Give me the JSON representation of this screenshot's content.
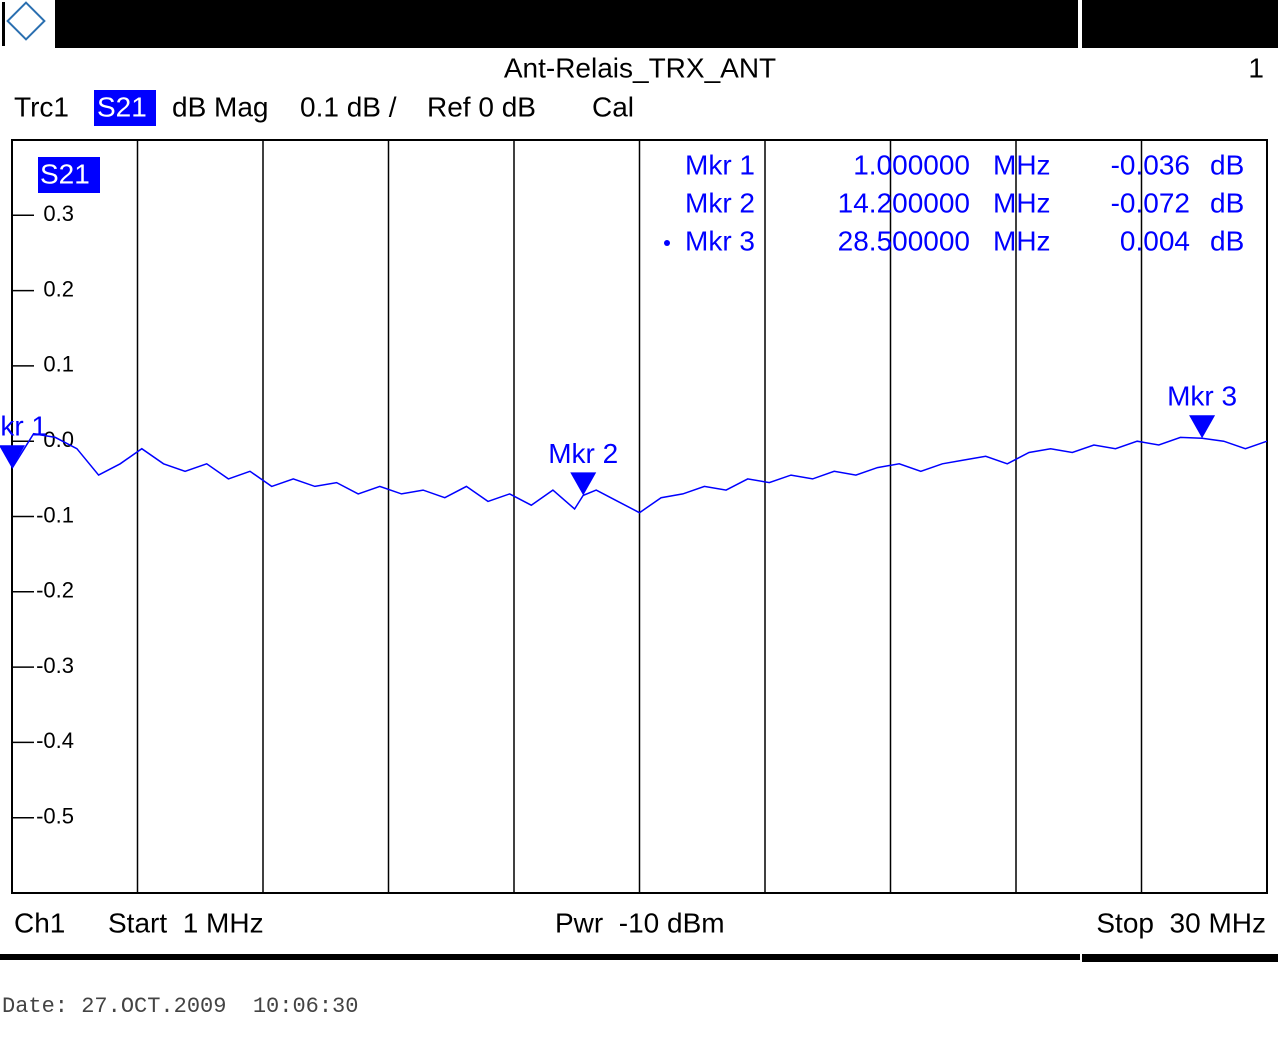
{
  "chart_data": {
    "type": "line",
    "title": "Ant-Relais_TRX_ANT",
    "screen_number": "1",
    "header": {
      "trace": "Trc1",
      "param": "S21",
      "format": "dB Mag",
      "scale": "0.1 dB /",
      "ref": "Ref 0 dB",
      "cal": "Cal"
    },
    "trace_badge": "S21",
    "footer": {
      "channel": "Ch1",
      "start": "Start  1 MHz",
      "power": "Pwr  -10 dBm",
      "stop": "Stop  30 MHz"
    },
    "date": "Date: 27.OCT.2009  10:06:30",
    "xlim": [
      1,
      30
    ],
    "ylim": [
      -0.6,
      0.4
    ],
    "yticks": [
      0.3,
      0.2,
      0.1,
      {
        "value": 0,
        "label": "0.0"
      },
      -0.1,
      -0.2,
      -0.3,
      -0.4,
      -0.5
    ],
    "series": [
      {
        "name": "S21",
        "color": "#0000ff",
        "x": [
          1,
          1.5,
          2,
          2.5,
          3,
          3.5,
          4,
          4.5,
          5,
          5.5,
          6,
          6.5,
          7,
          7.5,
          8,
          8.5,
          9,
          9.5,
          10,
          10.5,
          11,
          11.5,
          12,
          12.5,
          13,
          13.5,
          14,
          14.2,
          14.5,
          15,
          15.5,
          16,
          16.5,
          17,
          17.5,
          18,
          18.5,
          19,
          19.5,
          20,
          20.5,
          21,
          21.5,
          22,
          22.5,
          23,
          23.5,
          24,
          24.5,
          25,
          25.5,
          26,
          26.5,
          27,
          27.5,
          28,
          28.5,
          29,
          29.5,
          30
        ],
        "values": [
          -0.036,
          0.01,
          0.005,
          -0.01,
          -0.045,
          -0.03,
          -0.01,
          -0.03,
          -0.04,
          -0.03,
          -0.05,
          -0.04,
          -0.06,
          -0.05,
          -0.06,
          -0.055,
          -0.07,
          -0.06,
          -0.07,
          -0.065,
          -0.075,
          -0.06,
          -0.08,
          -0.07,
          -0.085,
          -0.065,
          -0.09,
          -0.072,
          -0.065,
          -0.08,
          -0.095,
          -0.075,
          -0.07,
          -0.06,
          -0.065,
          -0.05,
          -0.055,
          -0.045,
          -0.05,
          -0.04,
          -0.045,
          -0.035,
          -0.03,
          -0.04,
          -0.03,
          -0.025,
          -0.02,
          -0.03,
          -0.015,
          -0.01,
          -0.015,
          -0.005,
          -0.01,
          0.0,
          -0.005,
          0.005,
          0.004,
          0.0,
          -0.01,
          0.0
        ]
      }
    ],
    "markers": [
      {
        "name": "Mkr 1",
        "x": {
          "value": 1,
          "label": "1.000000"
        },
        "x_unit": "MHz",
        "value": -0.036,
        "unit": "dB"
      },
      {
        "name": "Mkr 2",
        "x": {
          "value": 14.2,
          "label": "14.200000"
        },
        "x_unit": "MHz",
        "value": -0.072,
        "unit": "dB"
      },
      {
        "name": "Mkr 3",
        "x": {
          "value": 28.5,
          "label": "28.500000"
        },
        "x_unit": "MHz",
        "value": 0.004,
        "unit": "dB"
      }
    ]
  }
}
